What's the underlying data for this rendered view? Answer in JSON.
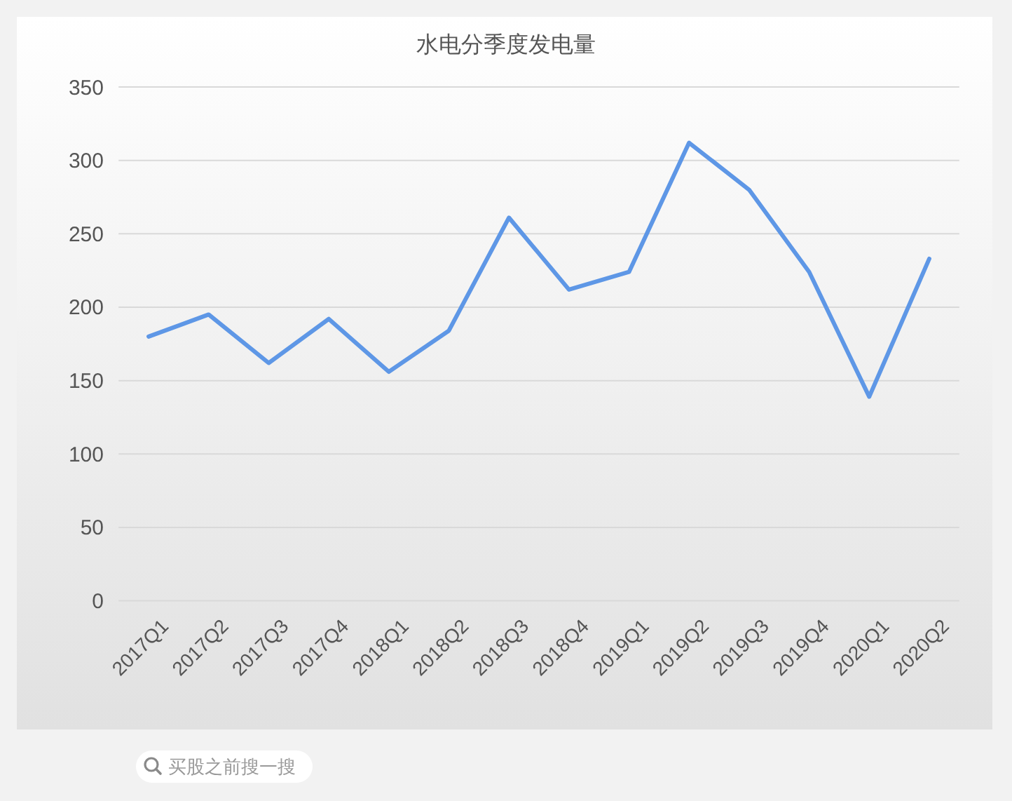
{
  "chart_data": {
    "type": "line",
    "title": "水电分季度发电量",
    "categories": [
      "2017Q1",
      "2017Q2",
      "2017Q3",
      "2017Q4",
      "2018Q1",
      "2018Q2",
      "2018Q3",
      "2018Q4",
      "2019Q1",
      "2019Q2",
      "2019Q3",
      "2019Q4",
      "2020Q1",
      "2020Q2"
    ],
    "series": [
      {
        "color": "#5e97e6",
        "values": [
          180,
          195,
          162,
          192,
          156,
          184,
          261,
          212,
          224,
          312,
          280,
          224,
          139,
          233
        ]
      }
    ],
    "ylim": [
      0,
      350
    ],
    "yticks": [
      0,
      50,
      100,
      150,
      200,
      250,
      300,
      350
    ],
    "grid": "y",
    "annotations": [
      "买股之前搜一搜"
    ]
  }
}
